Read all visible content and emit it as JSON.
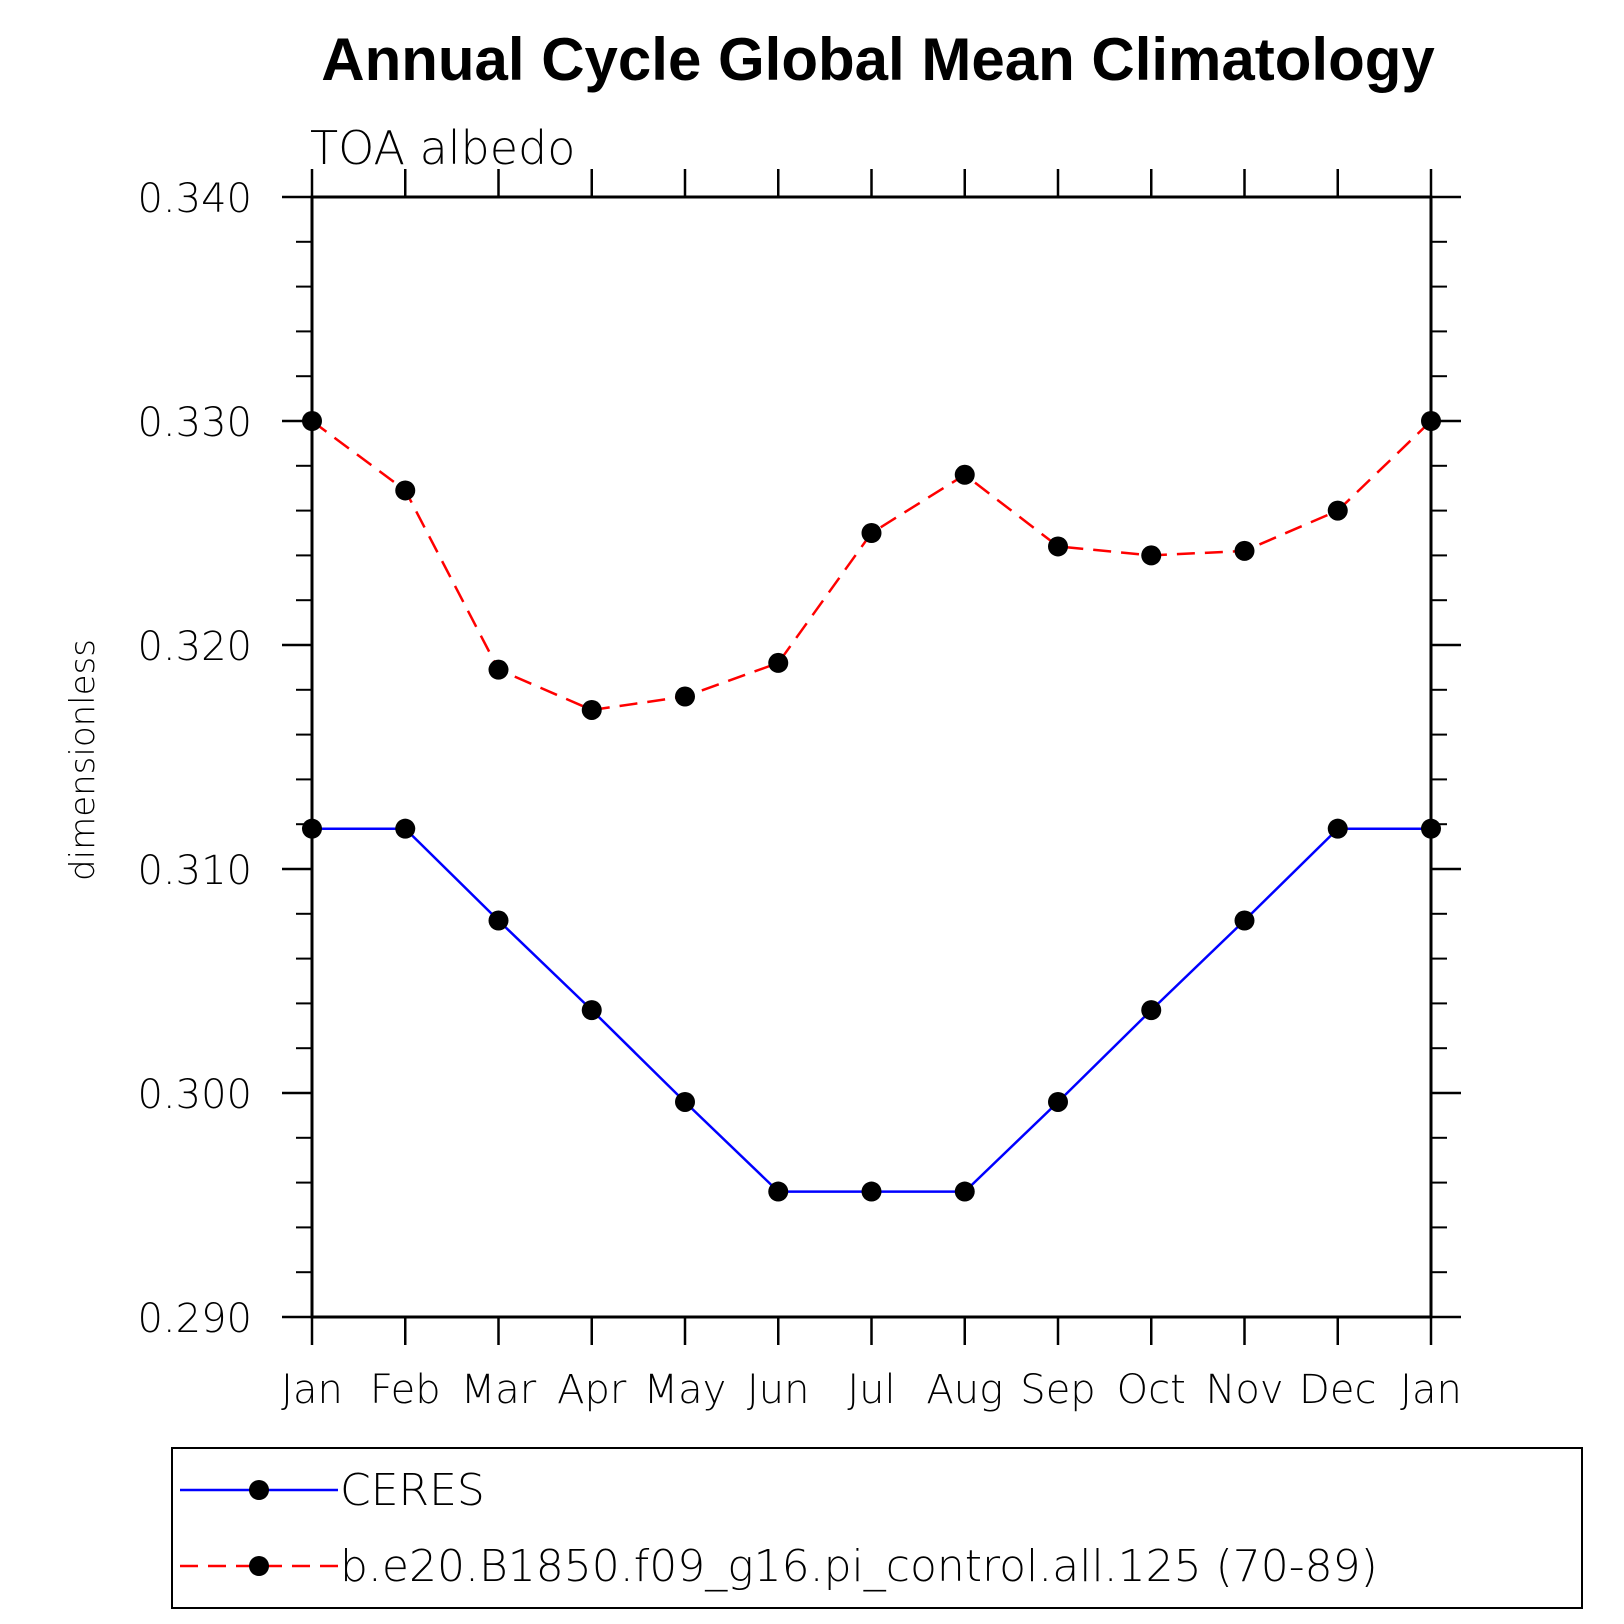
{
  "chart_data": {
    "type": "line",
    "title": "Annual Cycle Global Mean Climatology",
    "subtitle": "TOA albedo",
    "ylabel": "dimensionless",
    "xlabel": "",
    "categories": [
      "Jan",
      "Feb",
      "Mar",
      "Apr",
      "May",
      "Jun",
      "Jul",
      "Aug",
      "Sep",
      "Oct",
      "Nov",
      "Dec",
      "Jan"
    ],
    "ylim": [
      0.29,
      0.34
    ],
    "yticks": [
      "0.290",
      "0.300",
      "0.310",
      "0.320",
      "0.330",
      "0.340"
    ],
    "grid": false,
    "legend_position": "bottom",
    "series": [
      {
        "name": "CERES",
        "color": "#0000ff",
        "dash": "solid",
        "values": [
          0.3118,
          0.3118,
          0.3077,
          0.3037,
          0.2996,
          0.2956,
          0.2956,
          0.2956,
          0.2996,
          0.3037,
          0.3077,
          0.3118,
          0.3118
        ]
      },
      {
        "name": "b.e20.B1850.f09_g16.pi_control.all.125 (70-89)",
        "color": "#ff0000",
        "dash": "dashed",
        "values": [
          0.33,
          0.3269,
          0.3189,
          0.3171,
          0.3177,
          0.3192,
          0.325,
          0.3276,
          0.3244,
          0.324,
          0.3242,
          0.326,
          0.33
        ]
      }
    ]
  }
}
